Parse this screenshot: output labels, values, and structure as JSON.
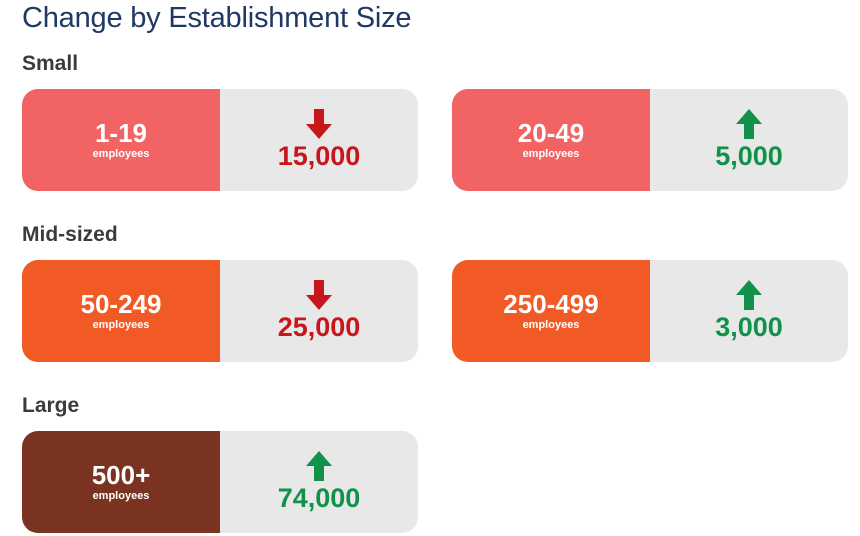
{
  "chart_data": {
    "type": "table",
    "title": "Change by Establishment Size",
    "unit_label": "employees",
    "groups": [
      {
        "label": "Small",
        "color": "#f26363",
        "items": [
          {
            "size": "1-19",
            "direction": "down",
            "change": -15000,
            "value_label": "15,000"
          },
          {
            "size": "20-49",
            "direction": "up",
            "change": 5000,
            "value_label": "5,000"
          }
        ]
      },
      {
        "label": "Mid-sized",
        "color": "#f15a24",
        "items": [
          {
            "size": "50-249",
            "direction": "down",
            "change": -25000,
            "value_label": "25,000"
          },
          {
            "size": "250-499",
            "direction": "up",
            "change": 3000,
            "value_label": "3,000"
          }
        ]
      },
      {
        "label": "Large",
        "color": "#7a3320",
        "items": [
          {
            "size": "500+",
            "direction": "up",
            "change": 74000,
            "value_label": "74,000"
          }
        ]
      }
    ],
    "colors": {
      "down": "#c8161d",
      "up": "#11914a",
      "panel": "#e8e8e8",
      "title": "#1f3864"
    }
  }
}
